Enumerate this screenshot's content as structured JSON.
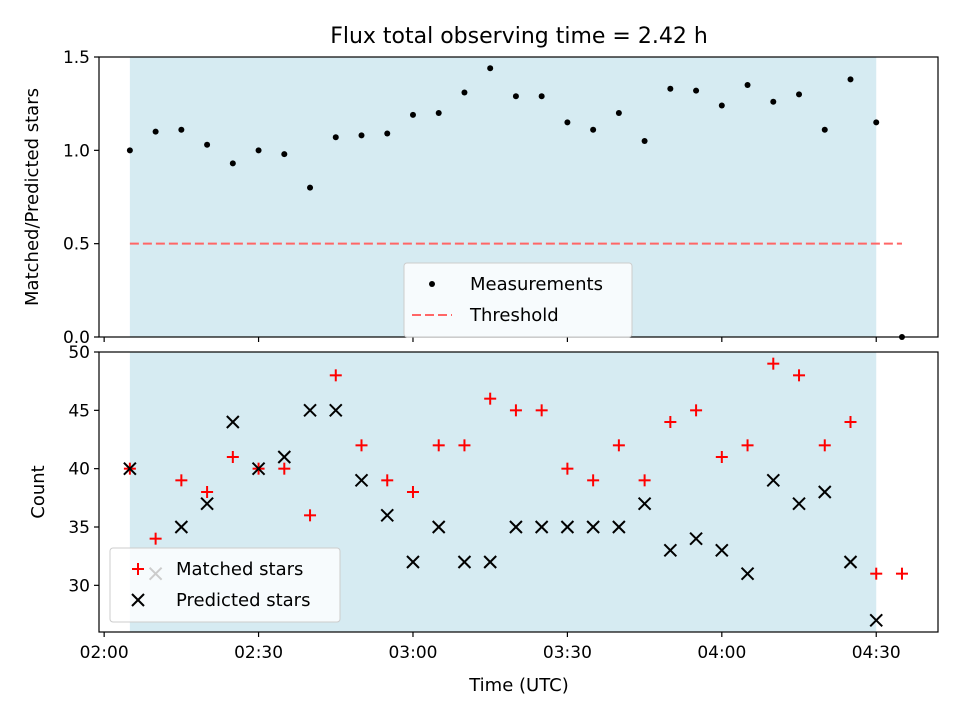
{
  "chart_data": {
    "title": "Flux total observing time = 2.42 h",
    "shading_color": "#add8e6",
    "x_axis": {
      "label": "Time (UTC)",
      "tick_labels": [
        "02:00",
        "02:30",
        "03:00",
        "03:30",
        "04:00",
        "04:30"
      ],
      "tick_values": [
        "02:00",
        "02:30",
        "03:00",
        "03:30",
        "04:00",
        "04:30"
      ],
      "range": [
        "01:59",
        "04:42"
      ],
      "shaded_interval": [
        "02:05",
        "04:30"
      ]
    },
    "panels": [
      {
        "type": "scatter",
        "ylabel": "Matched/Predicted stars",
        "ylim": [
          0,
          1.5
        ],
        "y_ticks": [
          "0.0",
          "0.5",
          "1.0",
          "1.5"
        ],
        "y_tick_values": [
          0,
          0.5,
          1.0,
          1.5
        ],
        "threshold": {
          "value": 0.5,
          "x_range": [
            "02:05",
            "04:35"
          ],
          "color": "#ff6666"
        },
        "legend": {
          "position": "lower center",
          "items": [
            "Measurements",
            "Threshold"
          ]
        },
        "series": [
          {
            "name": "Measurements",
            "marker": "dot",
            "color": "#000000",
            "points": [
              [
                "02:05",
                1.0
              ],
              [
                "02:10",
                1.1
              ],
              [
                "02:15",
                1.11
              ],
              [
                "02:20",
                1.03
              ],
              [
                "02:25",
                0.93
              ],
              [
                "02:30",
                1.0
              ],
              [
                "02:35",
                0.98
              ],
              [
                "02:40",
                0.8
              ],
              [
                "02:45",
                1.07
              ],
              [
                "02:50",
                1.08
              ],
              [
                "02:55",
                1.09
              ],
              [
                "03:00",
                1.19
              ],
              [
                "03:05",
                1.2
              ],
              [
                "03:10",
                1.31
              ],
              [
                "03:15",
                1.44
              ],
              [
                "03:20",
                1.29
              ],
              [
                "03:25",
                1.29
              ],
              [
                "03:30",
                1.15
              ],
              [
                "03:35",
                1.11
              ],
              [
                "03:40",
                1.2
              ],
              [
                "03:45",
                1.05
              ],
              [
                "03:50",
                1.33
              ],
              [
                "03:55",
                1.32
              ],
              [
                "04:00",
                1.24
              ],
              [
                "04:05",
                1.35
              ],
              [
                "04:10",
                1.26
              ],
              [
                "04:15",
                1.3
              ],
              [
                "04:20",
                1.11
              ],
              [
                "04:25",
                1.38
              ],
              [
                "04:30",
                1.15
              ],
              [
                "04:35",
                0.0
              ]
            ]
          }
        ]
      },
      {
        "type": "scatter",
        "ylabel": "Count",
        "ylim": [
          26,
          50
        ],
        "y_ticks": [
          "30",
          "35",
          "40",
          "45",
          "50"
        ],
        "y_tick_values": [
          30,
          35,
          40,
          45,
          50
        ],
        "legend": {
          "position": "lower left",
          "items": [
            "Matched stars",
            "Predicted stars"
          ]
        },
        "series": [
          {
            "name": "Matched stars",
            "marker": "plus",
            "color": "#ff0000",
            "points": [
              [
                "02:05",
                40
              ],
              [
                "02:10",
                34
              ],
              [
                "02:15",
                39
              ],
              [
                "02:20",
                38
              ],
              [
                "02:25",
                41
              ],
              [
                "02:30",
                40
              ],
              [
                "02:35",
                40
              ],
              [
                "02:40",
                36
              ],
              [
                "02:45",
                48
              ],
              [
                "02:50",
                42
              ],
              [
                "02:55",
                39
              ],
              [
                "03:00",
                38
              ],
              [
                "03:05",
                42
              ],
              [
                "03:10",
                42
              ],
              [
                "03:15",
                46
              ],
              [
                "03:20",
                45
              ],
              [
                "03:25",
                45
              ],
              [
                "03:30",
                40
              ],
              [
                "03:35",
                39
              ],
              [
                "03:40",
                42
              ],
              [
                "03:45",
                39
              ],
              [
                "03:50",
                44
              ],
              [
                "03:55",
                45
              ],
              [
                "04:00",
                41
              ],
              [
                "04:05",
                42
              ],
              [
                "04:10",
                49
              ],
              [
                "04:15",
                48
              ],
              [
                "04:20",
                42
              ],
              [
                "04:25",
                44
              ],
              [
                "04:30",
                31
              ],
              [
                "04:35",
                31
              ]
            ]
          },
          {
            "name": "Predicted stars",
            "marker": "x",
            "color": "#000000",
            "points": [
              [
                "02:05",
                40
              ],
              [
                "02:10",
                31
              ],
              [
                "02:15",
                35
              ],
              [
                "02:20",
                37
              ],
              [
                "02:25",
                44
              ],
              [
                "02:30",
                40
              ],
              [
                "02:35",
                41
              ],
              [
                "02:40",
                45
              ],
              [
                "02:45",
                45
              ],
              [
                "02:50",
                39
              ],
              [
                "02:55",
                36
              ],
              [
                "03:00",
                32
              ],
              [
                "03:05",
                35
              ],
              [
                "03:10",
                32
              ],
              [
                "03:15",
                32
              ],
              [
                "03:20",
                35
              ],
              [
                "03:25",
                35
              ],
              [
                "03:30",
                35
              ],
              [
                "03:35",
                35
              ],
              [
                "03:40",
                35
              ],
              [
                "03:45",
                37
              ],
              [
                "03:50",
                33
              ],
              [
                "03:55",
                34
              ],
              [
                "04:00",
                33
              ],
              [
                "04:05",
                31
              ],
              [
                "04:10",
                39
              ],
              [
                "04:15",
                37
              ],
              [
                "04:20",
                38
              ],
              [
                "04:25",
                32
              ],
              [
                "04:30",
                27
              ]
            ]
          }
        ]
      }
    ]
  }
}
